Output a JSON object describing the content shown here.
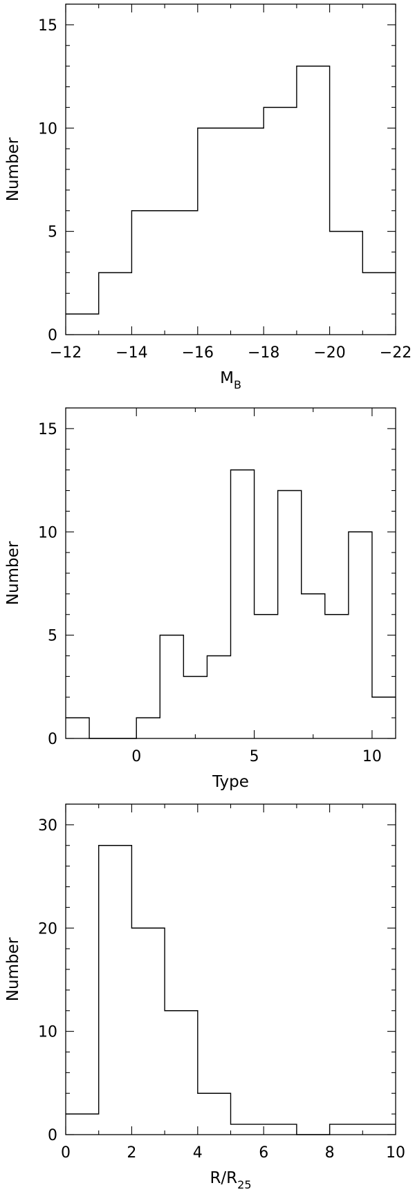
{
  "chart_data": [
    {
      "type": "bar",
      "xlabel": "M",
      "xlabel_sub": "B",
      "ylabel": "Number",
      "xlim": [
        -12,
        -22
      ],
      "ylim": [
        0,
        16
      ],
      "xticks": [
        -12,
        -14,
        -16,
        -18,
        -20,
        -22
      ],
      "xtick_labels": [
        "−12",
        "−14",
        "−16",
        "−18",
        "−20",
        "−22"
      ],
      "yticks": [
        0,
        5,
        10,
        15
      ],
      "ytick_labels": [
        "0",
        "5",
        "10",
        "15"
      ],
      "bin_edges": [
        -12,
        -13,
        -14,
        -15,
        -16,
        -17,
        -18,
        -19,
        -20,
        -21,
        -22
      ],
      "values": [
        1,
        3,
        6,
        6,
        10,
        10,
        11,
        13,
        5,
        3
      ]
    },
    {
      "type": "bar",
      "xlabel": "Type",
      "ylabel": "Number",
      "xlim": [
        -3,
        11
      ],
      "ylim": [
        0,
        16
      ],
      "xticks": [
        0,
        5,
        10
      ],
      "xtick_labels": [
        "0",
        "5",
        "10"
      ],
      "yticks": [
        0,
        5,
        10,
        15
      ],
      "ytick_labels": [
        "0",
        "5",
        "10",
        "15"
      ],
      "bin_edges": [
        -3,
        -2,
        -1,
        0,
        1,
        2,
        3,
        4,
        5,
        6,
        7,
        8,
        9,
        10,
        11
      ],
      "values": [
        1,
        0,
        0,
        1,
        5,
        3,
        4,
        13,
        6,
        12,
        7,
        6,
        10,
        2
      ]
    },
    {
      "type": "bar",
      "xlabel": "R/R",
      "xlabel_sub": "25",
      "ylabel": "Number",
      "xlim": [
        0,
        10
      ],
      "ylim": [
        0,
        32
      ],
      "xticks": [
        0,
        2,
        4,
        6,
        8,
        10
      ],
      "xtick_labels": [
        "0",
        "2",
        "4",
        "6",
        "8",
        "10"
      ],
      "yticks": [
        0,
        10,
        20,
        30
      ],
      "ytick_labels": [
        "0",
        "10",
        "20",
        "30"
      ],
      "bin_edges": [
        0,
        1,
        2,
        3,
        4,
        5,
        6,
        7,
        8,
        9,
        10
      ],
      "values": [
        2,
        28,
        20,
        12,
        4,
        1,
        1,
        0,
        1,
        1
      ]
    }
  ]
}
